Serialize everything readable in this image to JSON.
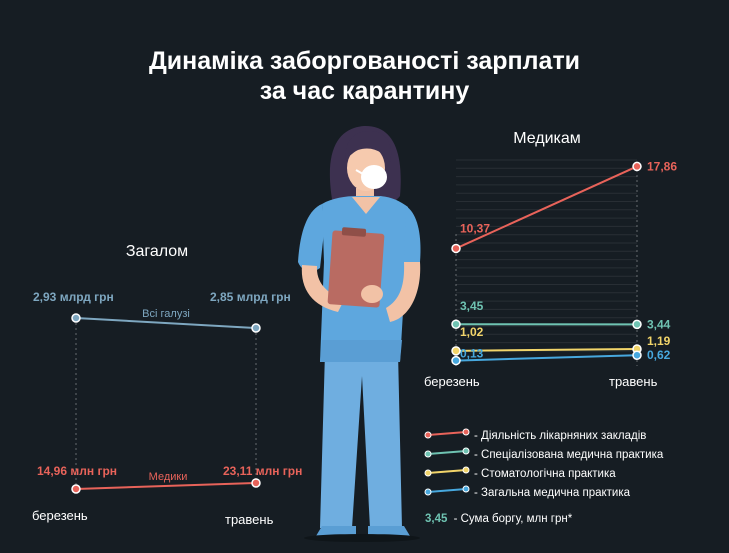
{
  "title": {
    "line1": "Динаміка заборгованості зарплати",
    "line2": "за час карантину"
  },
  "colors": {
    "background": "#161d23",
    "red": "#e8635a",
    "teal": "#6fc3b2",
    "yellow": "#f2d56a",
    "blue": "#47a8de",
    "gray_line": "#7ea7c0",
    "text": "#ffffff"
  },
  "chart_data": [
    {
      "type": "line",
      "title": "Загалом",
      "x": [
        "березень",
        "травень"
      ],
      "series": [
        {
          "name": "Всі галузі",
          "values": [
            2.93,
            2.85
          ],
          "value_labels": [
            "2,93 млрд грн",
            "2,85 млрд грн"
          ],
          "color": "#7ea7c0"
        },
        {
          "name": "Медики",
          "values": [
            14.96,
            23.11
          ],
          "value_labels": [
            "14,96 млн грн",
            "23,11 млн грн"
          ],
          "color": "#e8635a"
        }
      ]
    },
    {
      "type": "line",
      "title": "Медикам",
      "x": [
        "березень",
        "травень"
      ],
      "ylim": [
        0,
        20
      ],
      "series": [
        {
          "name": "Діяльність лікарняних закладів",
          "values": [
            10.37,
            17.86
          ],
          "value_labels": [
            "10,37",
            "17,86"
          ],
          "color": "#e8635a"
        },
        {
          "name": "Спеціалізована медична практика",
          "values": [
            3.45,
            3.44
          ],
          "value_labels": [
            "3,45",
            "3,44"
          ],
          "color": "#6fc3b2"
        },
        {
          "name": "Стоматологічна практика",
          "values": [
            1.02,
            1.19
          ],
          "value_labels": [
            "1,02",
            "1,19"
          ],
          "color": "#f2d56a"
        },
        {
          "name": "Загальна медична практика",
          "values": [
            0.13,
            0.62
          ],
          "value_labels": [
            "0,13",
            "0,62"
          ],
          "color": "#47a8de"
        }
      ],
      "legend_prefix": "-",
      "footnote": {
        "value": "3,45",
        "text": "- Сума боргу, млн грн*"
      }
    }
  ]
}
